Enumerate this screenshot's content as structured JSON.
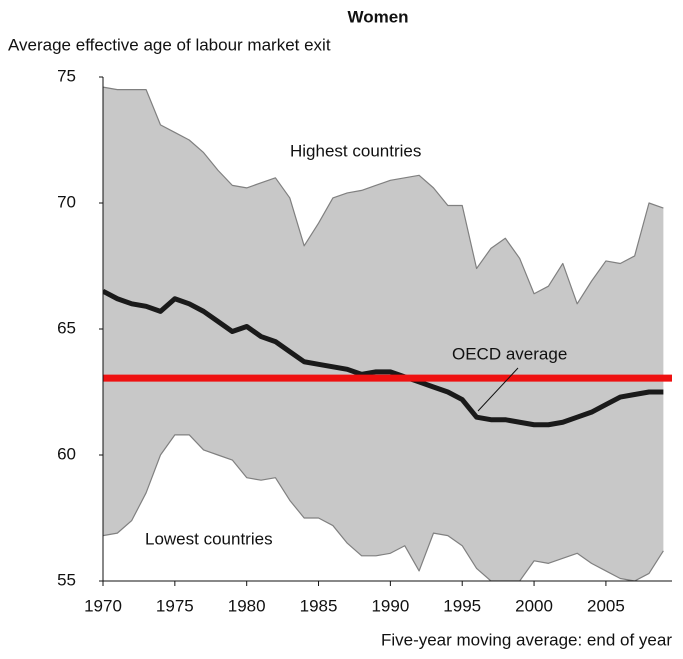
{
  "chart_data": {
    "type": "band-line",
    "title": "Women",
    "y_label": "Average effective age of labour market exit",
    "x_label": "Five-year moving average: end of year",
    "x": [
      1970,
      1971,
      1972,
      1973,
      1974,
      1975,
      1976,
      1977,
      1978,
      1979,
      1980,
      1981,
      1982,
      1983,
      1984,
      1985,
      1986,
      1987,
      1988,
      1989,
      1990,
      1991,
      1992,
      1993,
      1994,
      1995,
      1996,
      1997,
      1998,
      1999,
      2000,
      2001,
      2002,
      2003,
      2004,
      2005,
      2006,
      2007,
      2008,
      2009
    ],
    "series": [
      {
        "name": "Highest countries",
        "color": "#808080",
        "values": [
          74.6,
          74.5,
          74.5,
          74.5,
          73.1,
          72.8,
          72.5,
          72.0,
          71.3,
          70.7,
          70.6,
          70.8,
          71.0,
          70.2,
          68.3,
          69.2,
          70.2,
          70.4,
          70.5,
          70.7,
          70.9,
          71.0,
          71.1,
          70.6,
          69.9,
          69.9,
          67.4,
          68.2,
          68.6,
          67.8,
          66.4,
          66.7,
          67.6,
          66.0,
          66.9,
          67.7,
          67.6,
          67.9,
          70.0,
          69.8
        ]
      },
      {
        "name": "Lowest countries",
        "color": "#808080",
        "values": [
          56.8,
          56.9,
          57.4,
          58.5,
          60.0,
          60.8,
          60.8,
          60.2,
          60.0,
          59.8,
          59.1,
          59.0,
          59.1,
          58.2,
          57.5,
          57.5,
          57.2,
          56.5,
          56.0,
          56.0,
          56.1,
          56.4,
          55.4,
          56.9,
          56.8,
          56.4,
          55.5,
          55.0,
          55.0,
          55.0,
          55.8,
          55.7,
          55.9,
          56.1,
          55.7,
          55.4,
          55.1,
          55.0,
          55.3,
          56.2
        ]
      },
      {
        "name": "OECD average",
        "color": "#1a1a1a",
        "values": [
          66.5,
          66.2,
          66.0,
          65.9,
          65.7,
          66.2,
          66.0,
          65.7,
          65.3,
          64.9,
          65.1,
          64.7,
          64.5,
          64.1,
          63.7,
          63.6,
          63.5,
          63.4,
          63.2,
          63.3,
          63.3,
          63.1,
          62.9,
          62.7,
          62.5,
          62.2,
          61.5,
          61.4,
          61.4,
          61.3,
          61.2,
          61.2,
          61.3,
          61.5,
          61.7,
          62.0,
          62.3,
          62.4,
          62.5,
          62.5
        ]
      }
    ],
    "band_color": "#c8c8c8",
    "reference_line": {
      "value": 63.05,
      "color": "#ee1111"
    },
    "xlim": [
      1970,
      2009.6
    ],
    "ylim": [
      55,
      75
    ],
    "xticks": [
      1970,
      1975,
      1980,
      1985,
      1990,
      1995,
      2000,
      2005
    ],
    "yticks": [
      55,
      60,
      65,
      70,
      75
    ]
  }
}
